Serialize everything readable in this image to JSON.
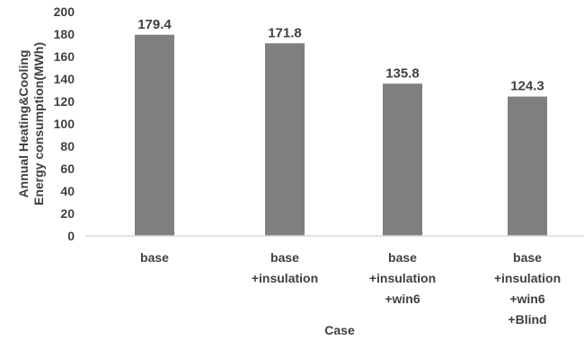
{
  "chart_data": {
    "type": "bar",
    "categories": [
      [
        "base"
      ],
      [
        "base",
        "+insulation"
      ],
      [
        "base",
        "+insulation",
        "+win6"
      ],
      [
        "base",
        "+insulation",
        "+win6",
        "+Blind"
      ]
    ],
    "values": [
      179.4,
      171.8,
      135.8,
      124.3
    ],
    "data_labels": [
      "179.4",
      "171.8",
      "135.8",
      "124.3"
    ],
    "title": "",
    "xlabel": "Case",
    "ylabel": [
      "Annual Heating&Cooling",
      "Energy consumption(MWh)"
    ],
    "ylim": [
      0,
      200
    ],
    "yticks": [
      0,
      20,
      40,
      60,
      80,
      100,
      120,
      140,
      160,
      180,
      200
    ],
    "ytick_labels": [
      "0",
      "20",
      "40",
      "60",
      "80",
      "100",
      "120",
      "140",
      "160",
      "180",
      "200"
    ],
    "grid": false,
    "legend": "none",
    "bar_color": "#7f7f7f",
    "axis_color": "#d9d9d9",
    "text_color": "#404040"
  }
}
